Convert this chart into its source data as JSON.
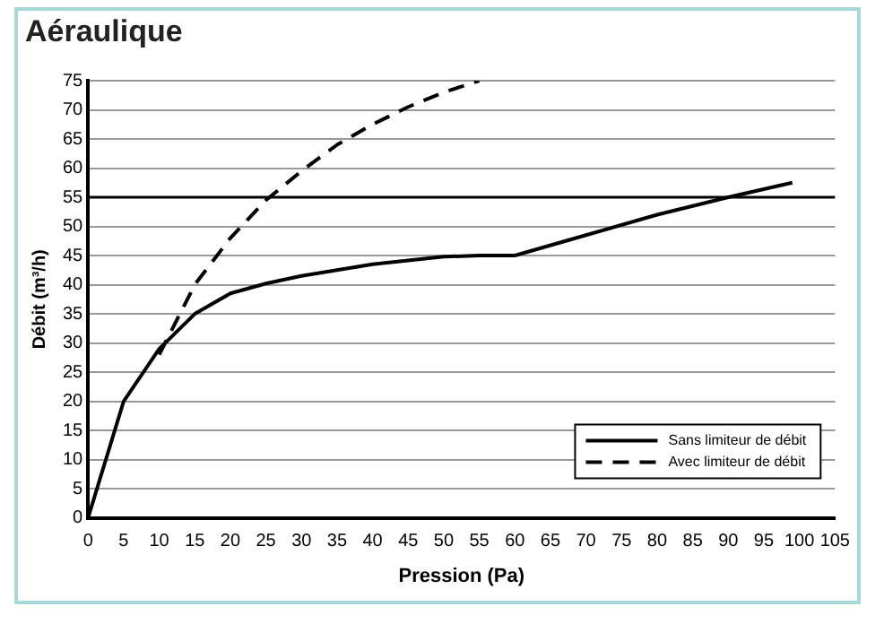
{
  "chart_data": {
    "type": "line",
    "title": "Aéraulique",
    "xlabel": "Pression (Pa)",
    "ylabel": "Débit (m³/h)",
    "xlim": [
      0,
      105
    ],
    "xticks": [
      0,
      5,
      10,
      15,
      20,
      25,
      30,
      35,
      40,
      45,
      50,
      55,
      60,
      65,
      70,
      75,
      80,
      85,
      90,
      95,
      100,
      105
    ],
    "ylim": [
      0,
      75
    ],
    "yticks": [
      0,
      5,
      10,
      15,
      20,
      25,
      30,
      35,
      40,
      45,
      50,
      55,
      60,
      65,
      70,
      75
    ],
    "grid": "y",
    "legend": "bottom right",
    "marker": "none",
    "ref_lines": [
      {
        "axis": "y",
        "value": 55,
        "color": "#000000"
      }
    ],
    "series": [
      {
        "name": "Sans limiteur de débit",
        "color": "#000000",
        "line_style": "solid",
        "x": [
          0,
          5,
          10,
          15,
          20,
          25,
          30,
          40,
          50,
          55,
          60,
          70,
          80,
          90,
          99
        ],
        "values": [
          0,
          20,
          29,
          35,
          38.5,
          40.2,
          41.5,
          43.5,
          44.8,
          45,
          45,
          48.5,
          52,
          55,
          57.5
        ]
      },
      {
        "name": "Avec limiteur de débit",
        "color": "#000000",
        "line_style": "dashed",
        "x": [
          10,
          15,
          20,
          25,
          30,
          35,
          40,
          45,
          50,
          55
        ],
        "values": [
          28,
          40,
          48,
          54.5,
          59.5,
          64,
          67.5,
          70.5,
          73,
          75
        ]
      }
    ]
  }
}
